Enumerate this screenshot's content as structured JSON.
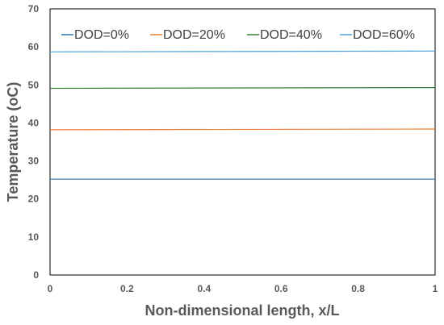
{
  "chart_data": {
    "type": "line",
    "title": "",
    "xlabel": "Non-dimensional length, x/L",
    "ylabel": "Temperature (oC)",
    "xlim": [
      0,
      1
    ],
    "ylim": [
      0,
      70
    ],
    "x_ticks": [
      0,
      0.2,
      0.4,
      0.6,
      0.8,
      1
    ],
    "x_tick_labels": [
      "0",
      "0.2",
      "0.4",
      "0.6",
      "0.8",
      "1"
    ],
    "y_ticks": [
      0,
      10,
      20,
      30,
      40,
      50,
      60,
      70
    ],
    "y_tick_labels": [
      "0",
      "10",
      "20",
      "30",
      "40",
      "50",
      "60",
      "70"
    ],
    "grid": false,
    "legend_position": "top",
    "x": [
      0,
      1
    ],
    "series": [
      {
        "name": "DOD=0%",
        "color": "#2E75B6",
        "values": [
          25.2,
          25.2
        ]
      },
      {
        "name": "DOD=20%",
        "color": "#ED7D31",
        "values": [
          38.2,
          38.4
        ]
      },
      {
        "name": "DOD=40%",
        "color": "#3A7D3A",
        "values": [
          49.1,
          49.3
        ]
      },
      {
        "name": "DOD=60%",
        "color": "#4BA3D9",
        "values": [
          58.7,
          58.9
        ]
      }
    ]
  }
}
